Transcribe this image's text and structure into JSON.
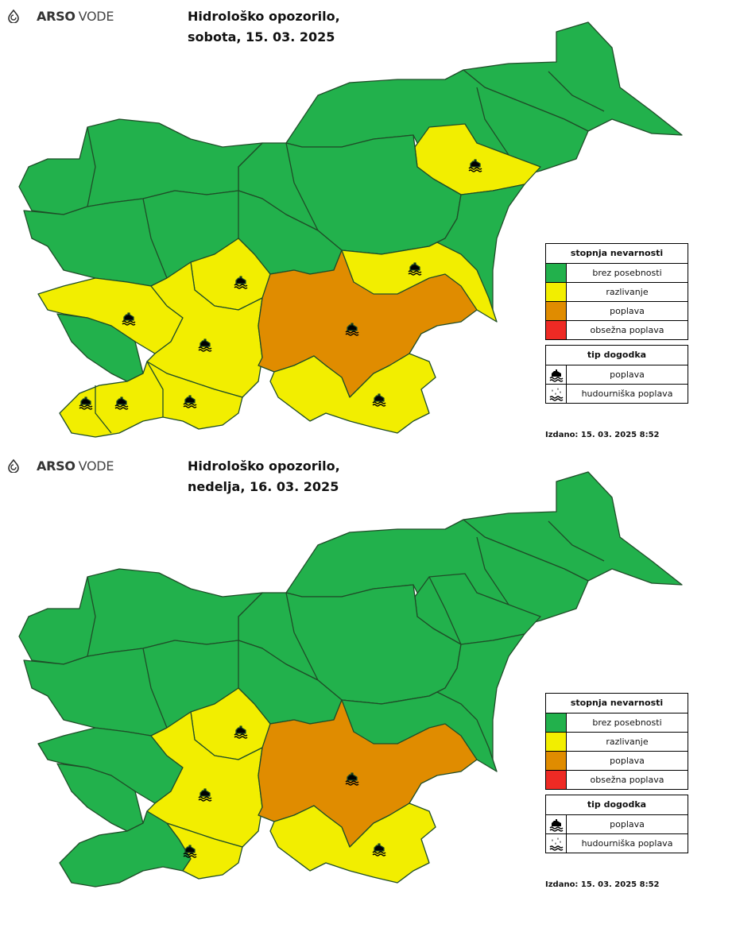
{
  "colors": {
    "green": "#22b14c",
    "yellow": "#f2ee00",
    "orange": "#e08c00",
    "red": "#ee2a24",
    "border": "#1f4d28"
  },
  "icons": [
    "flood-icon",
    "flash-flood-icon",
    "arso-logo-icon"
  ],
  "panels": [
    {
      "logo": {
        "arso": "ARSO",
        "vode": "VODE"
      },
      "title_line1": "Hidrološko opozorilo,",
      "title_line2": "sobota, 15. 03. 2025",
      "legend": {
        "level_header": "stopnja nevarnosti",
        "levels": [
          {
            "label": "brez posebnosti",
            "color": "#22b14c"
          },
          {
            "label": "razlivanje",
            "color": "#f2ee00"
          },
          {
            "label": "poplava",
            "color": "#e08c00"
          },
          {
            "label": "obsežna poplava",
            "color": "#ee2a24"
          }
        ],
        "type_header": "tip dogodka",
        "types": [
          {
            "label": "poplava",
            "icon": "flood-icon"
          },
          {
            "label": "hudourniška poplava",
            "icon": "flash-flood-icon"
          }
        ]
      },
      "issued": "Izdano: 15. 03. 2025 8:52"
    },
    {
      "logo": {
        "arso": "ARSO",
        "vode": "VODE"
      },
      "title_line1": "Hidrološko opozorilo,",
      "title_line2": "nedelja, 16. 03. 2025",
      "legend": {
        "level_header": "stopnja nevarnosti",
        "levels": [
          {
            "label": "brez posebnosti",
            "color": "#22b14c"
          },
          {
            "label": "razlivanje",
            "color": "#f2ee00"
          },
          {
            "label": "poplava",
            "color": "#e08c00"
          },
          {
            "label": "obsežna poplava",
            "color": "#ee2a24"
          }
        ],
        "type_header": "tip dogodka",
        "types": [
          {
            "label": "poplava",
            "icon": "flood-icon"
          },
          {
            "label": "hudourniška poplava",
            "icon": "flash-flood-icon"
          }
        ]
      },
      "issued": "Izdano: 15. 03. 2025 8:52"
    }
  ]
}
